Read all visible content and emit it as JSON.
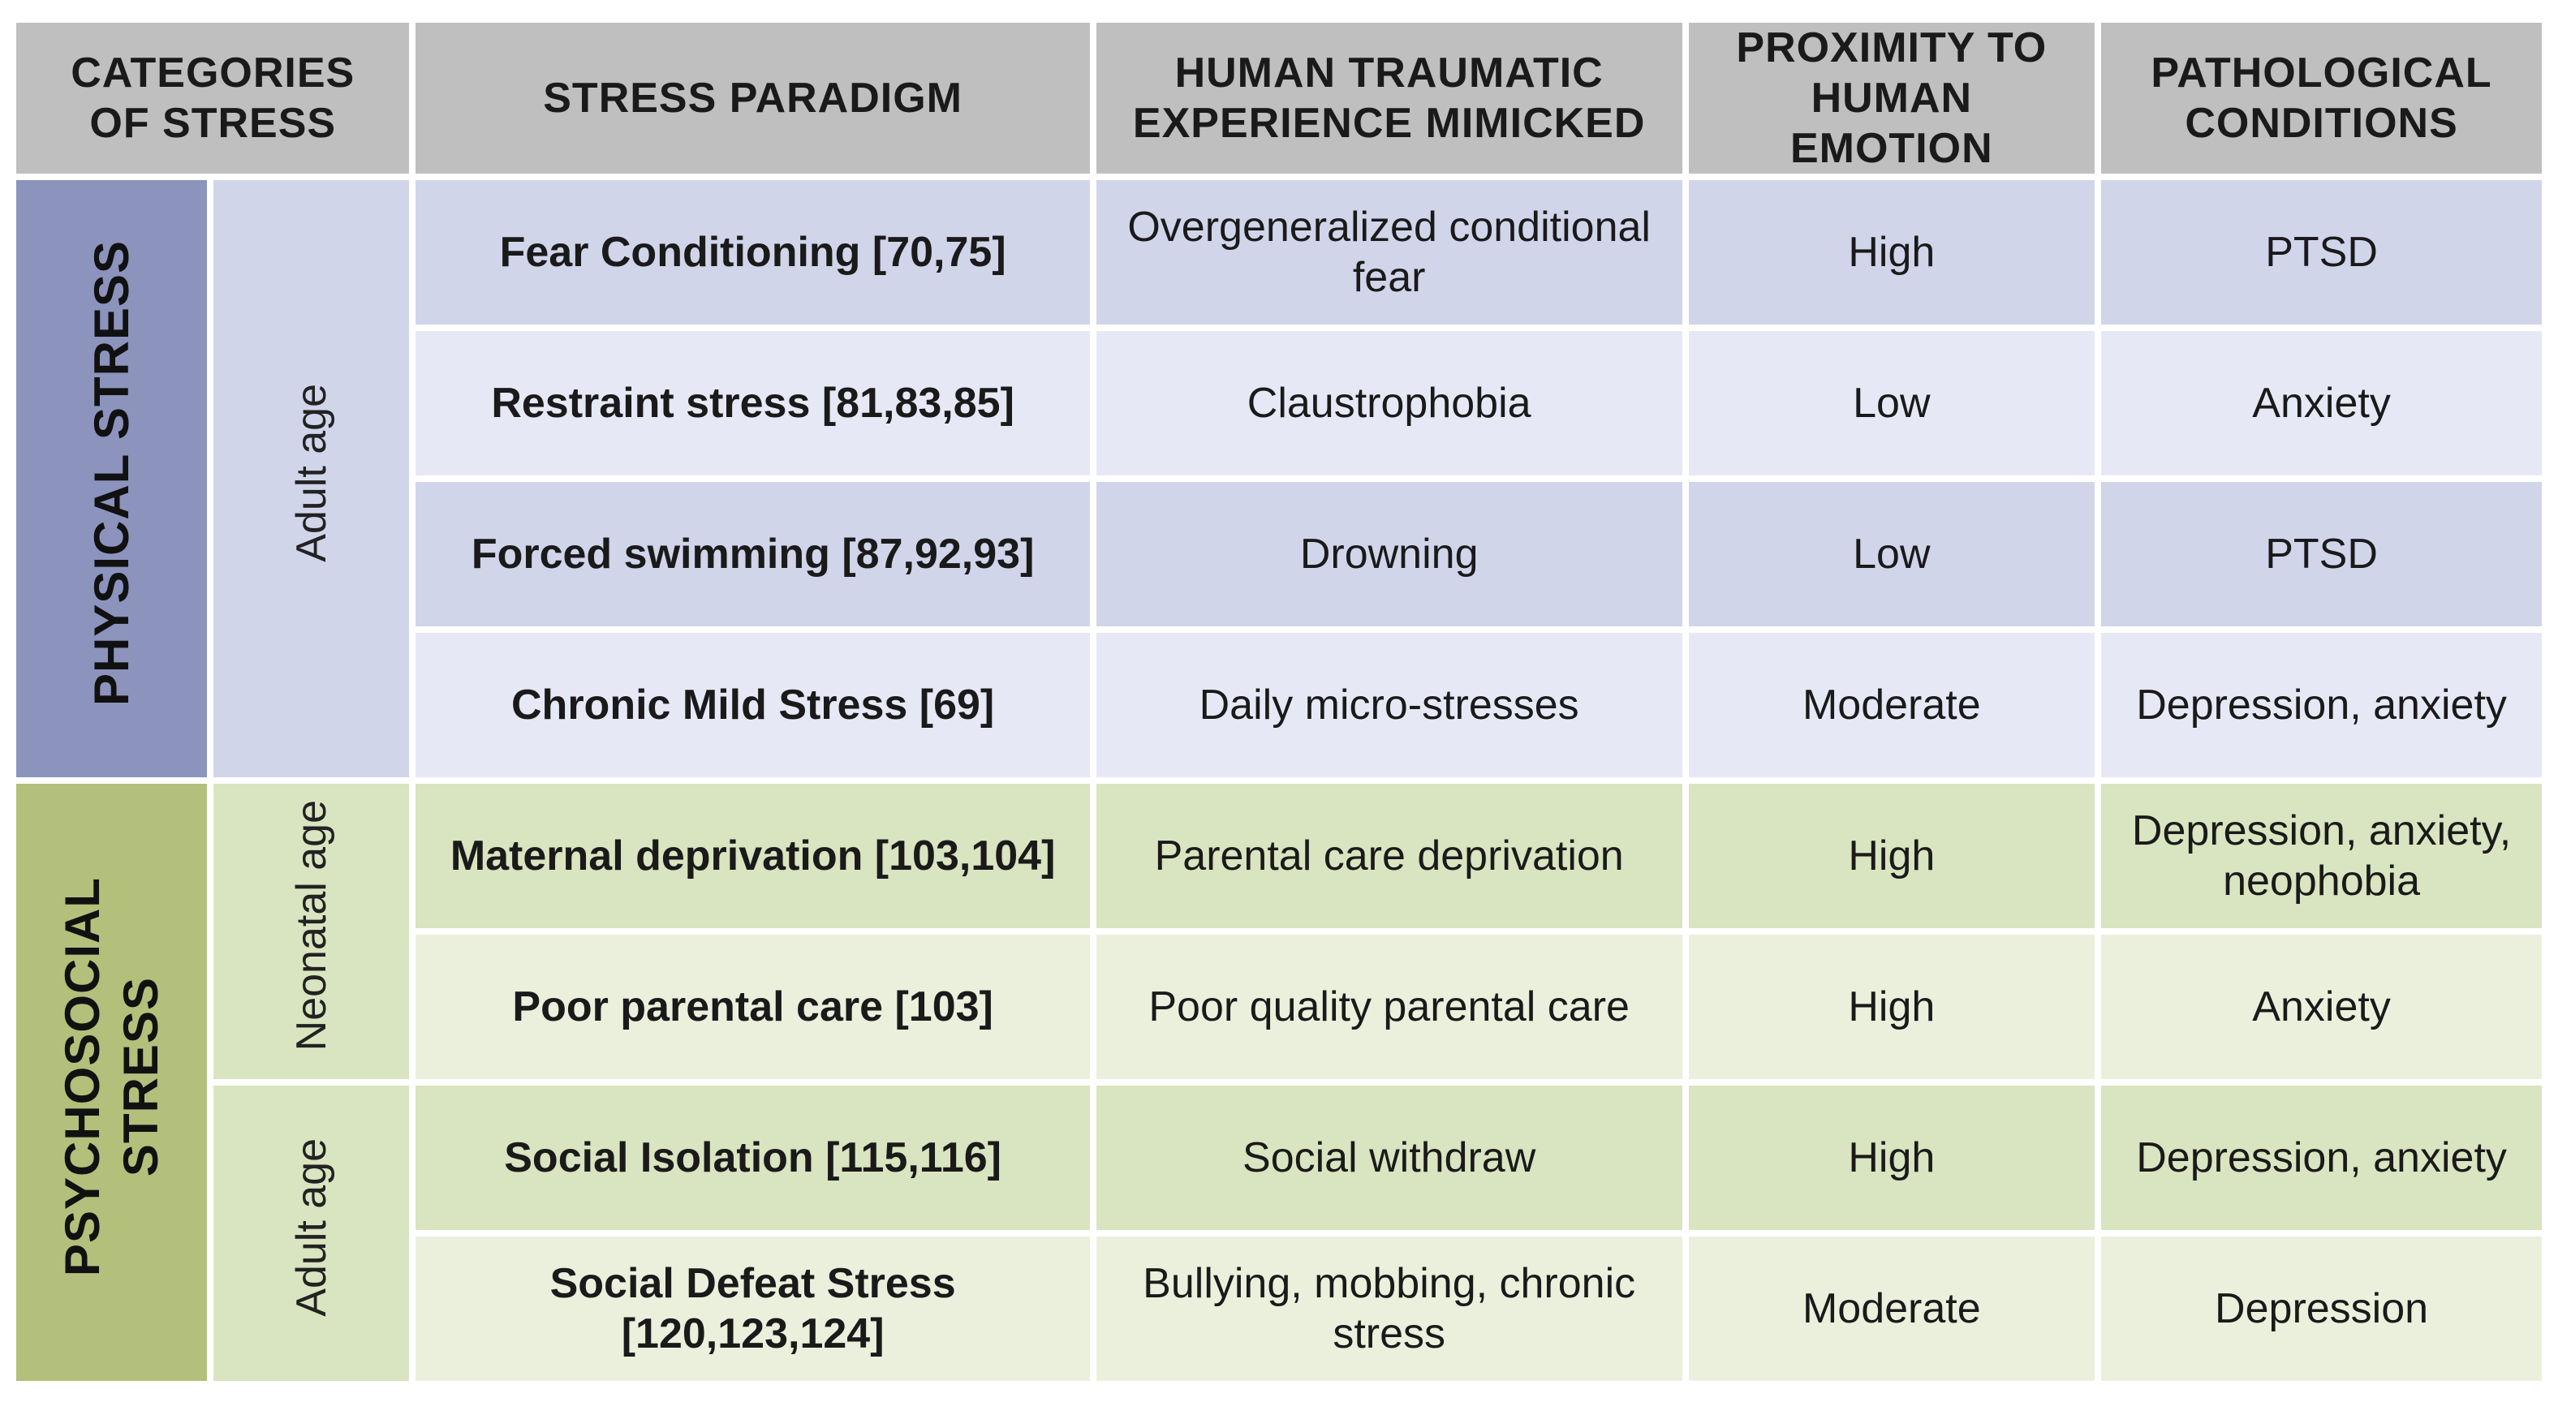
{
  "headers": {
    "categories": "CATEGORIES OF STRESS",
    "paradigm": "STRESS PARADIGM",
    "experience": "HUMAN TRAUMATIC EXPERIENCE MIMICKED",
    "proximity": "PROXIMITY TO HUMAN EMOTION",
    "conditions": "PATHOLOGICAL CONDITIONS"
  },
  "categories": {
    "physical": "PHYSICAL STRESS",
    "psychosocial_line1": "PSYCHOSOCIAL",
    "psychosocial_line2": "STRESS"
  },
  "ages": {
    "physical_adult": "Adult age",
    "psychosocial_neonatal": "Neonatal age",
    "psychosocial_adult": "Adult age"
  },
  "rows": [
    {
      "paradigm": "Fear Conditioning [70,75]",
      "experience": "Overgeneralized conditional fear",
      "proximity": "High",
      "conditions": "PTSD"
    },
    {
      "paradigm": "Restraint stress [81,83,85]",
      "experience": "Claustrophobia",
      "proximity": "Low",
      "conditions": "Anxiety"
    },
    {
      "paradigm": "Forced swimming [87,92,93]",
      "experience": "Drowning",
      "proximity": "Low",
      "conditions": "PTSD"
    },
    {
      "paradigm": "Chronic Mild Stress [69]",
      "experience": "Daily micro-stresses",
      "proximity": "Moderate",
      "conditions": "Depression, anxiety"
    },
    {
      "paradigm": "Maternal deprivation [103,104]",
      "experience": "Parental care deprivation",
      "proximity": "High",
      "conditions": "Depression, anxiety, neophobia"
    },
    {
      "paradigm": "Poor parental care [103]",
      "experience": "Poor quality parental care",
      "proximity": "High",
      "conditions": "Anxiety"
    },
    {
      "paradigm": "Social Isolation [115,116]",
      "experience": "Social withdraw",
      "proximity": "High",
      "conditions": "Depression, anxiety"
    },
    {
      "paradigm": "Social Defeat Stress [120,123,124]",
      "experience": "Bullying, mobbing, chronic stress",
      "proximity": "Moderate",
      "conditions": "Depression"
    }
  ],
  "colors": {
    "header": "#bfbfbf",
    "physical_category": "#8c93bc",
    "physical_dark": "#d0d5ea",
    "physical_light": "#e6e9f5",
    "psychosocial_category": "#b2c07b",
    "psychosocial_dark": "#d9e4c0",
    "psychosocial_light": "#ebf0dd"
  }
}
